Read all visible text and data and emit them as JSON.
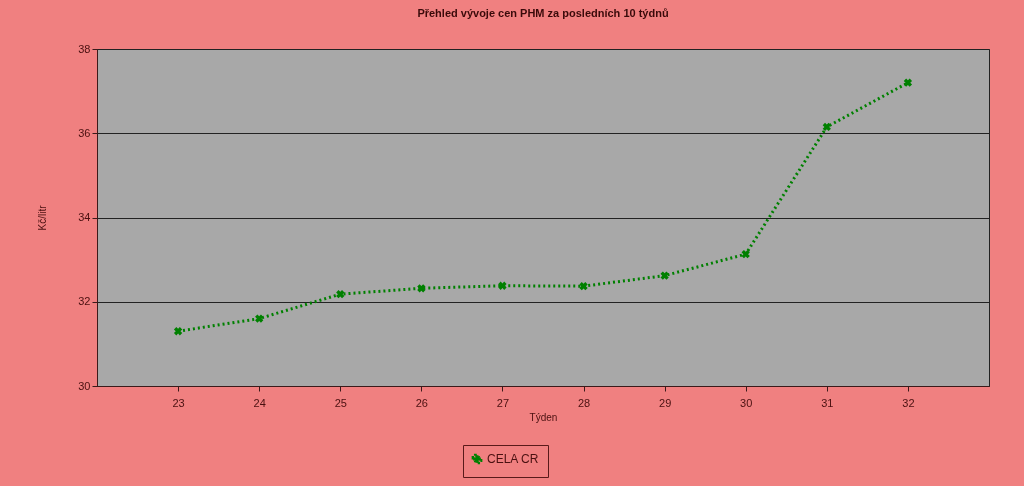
{
  "chart_data": {
    "type": "line",
    "title": "Přehled vývoje cen PHM za posledních 10 týdnů",
    "xlabel": "Týden",
    "ylabel": "Kč/litr",
    "x": [
      23,
      24,
      25,
      26,
      27,
      28,
      29,
      30,
      31,
      32
    ],
    "series": [
      {
        "name": "CELA CR",
        "color": "#008000",
        "values": [
          31.3,
          31.6,
          32.18,
          32.32,
          32.38,
          32.37,
          32.62,
          33.13,
          36.15,
          37.2
        ]
      }
    ],
    "xlim": [
      22,
      33
    ],
    "xticks": [
      23,
      24,
      25,
      26,
      27,
      28,
      29,
      30,
      31,
      32
    ],
    "ylim": [
      30,
      38
    ],
    "yticks": [
      30,
      32,
      34,
      36,
      38
    ],
    "grid": "y",
    "legend": "bottom",
    "marker": "cross",
    "line_style": "dotted"
  }
}
